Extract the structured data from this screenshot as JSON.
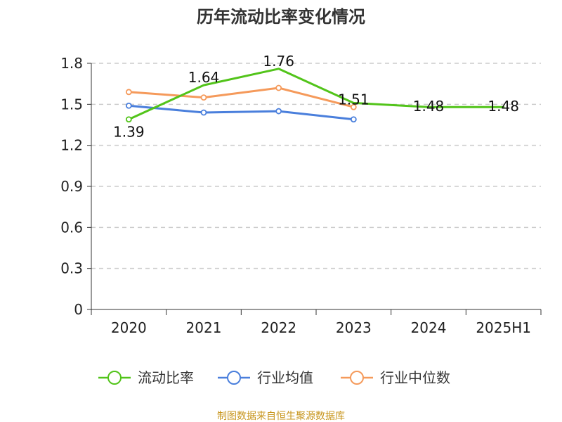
{
  "chart_data": {
    "type": "line",
    "title": "历年流动比率变化情况",
    "xlabel": "",
    "ylabel": "",
    "categories": [
      "2020",
      "2021",
      "2022",
      "2023",
      "2024",
      "2025H1"
    ],
    "ylim": [
      0,
      1.8
    ],
    "yticks": [
      "0",
      "0.3",
      "0.6",
      "0.9",
      "1.2",
      "1.5",
      "1.8"
    ],
    "grid": true,
    "legend_position": "bottom",
    "series": [
      {
        "name": "流动比率",
        "color": "#52c41a",
        "values": [
          1.39,
          1.64,
          1.76,
          1.51,
          1.48,
          1.48
        ],
        "labels": [
          "1.39",
          "1.64",
          "1.76",
          "1.51",
          "1.48",
          "1.48"
        ],
        "show_markers": [
          true,
          false,
          false,
          false,
          false,
          false
        ]
      },
      {
        "name": "行业均值",
        "color": "#4a7fdc",
        "values": [
          1.49,
          1.44,
          1.45,
          1.39,
          null,
          null
        ]
      },
      {
        "name": "行业中位数",
        "color": "#f59a5b",
        "values": [
          1.59,
          1.55,
          1.62,
          1.48,
          null,
          null
        ]
      }
    ],
    "source": "制图数据来自恒生聚源数据库"
  }
}
